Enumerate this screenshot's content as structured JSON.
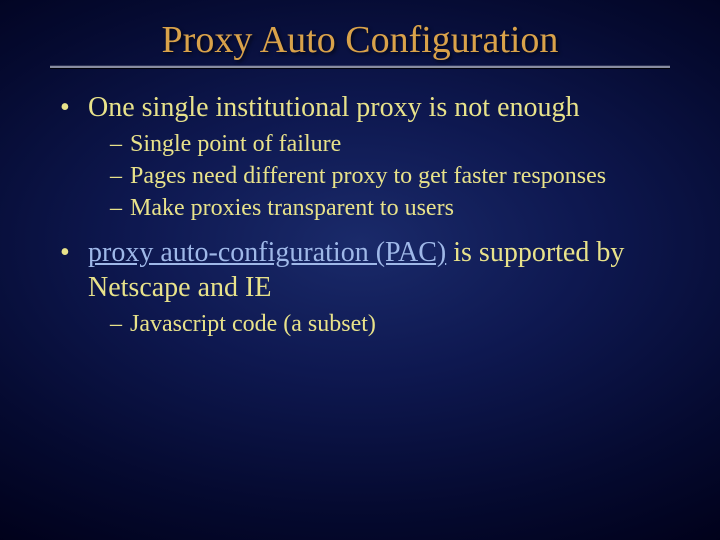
{
  "colors": {
    "title": "#d9a24a",
    "body": "#e8e28a",
    "link": "#9fb8e8"
  },
  "title": "Proxy Auto Configuration",
  "bullets": [
    {
      "text": "One single institutional proxy is not enough",
      "sub": [
        "Single point of failure",
        "Pages need different proxy to get faster responses",
        "Make proxies transparent to users"
      ]
    },
    {
      "pre": "",
      "link": "proxy auto-configuration (PAC)",
      "post": " is supported by Netscape and IE",
      "sub": [
        "Javascript code (a subset)"
      ]
    }
  ]
}
